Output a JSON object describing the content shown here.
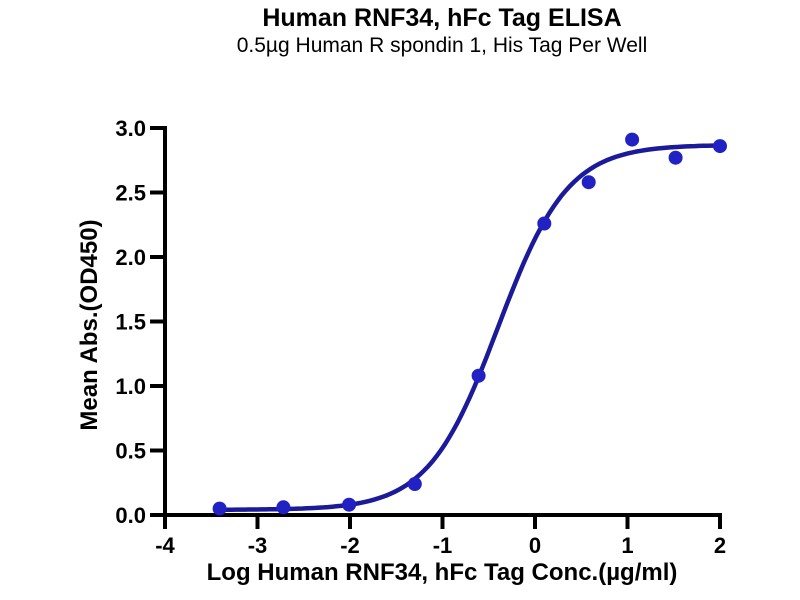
{
  "chart_data": {
    "type": "scatter",
    "title": "Human RNF34, hFc Tag ELISA",
    "subtitle": "0.5µg Human R spondin 1, His Tag Per Well",
    "xlabel": "Log Human RNF34, hFc Tag Conc.(µg/ml)",
    "ylabel": "Mean Abs.(OD450)",
    "xlim": [
      -4,
      2
    ],
    "ylim": [
      0,
      3
    ],
    "xticks": {
      "values": [
        -4,
        -3,
        -2,
        -1,
        0,
        1,
        2
      ],
      "labels": [
        "-4",
        "-3",
        "-2",
        "-1",
        "0",
        "1",
        "2"
      ]
    },
    "yticks": {
      "values": [
        0,
        0.5,
        1,
        1.5,
        2,
        2.5,
        3
      ],
      "labels": [
        "0.0",
        "0.5",
        "1.0",
        "1.5",
        "2.0",
        "2.5",
        "3.0"
      ]
    },
    "points": [
      {
        "x": -3.41,
        "y": 0.05
      },
      {
        "x": -2.72,
        "y": 0.06
      },
      {
        "x": -2.01,
        "y": 0.08
      },
      {
        "x": -1.3,
        "y": 0.24
      },
      {
        "x": -0.61,
        "y": 1.08
      },
      {
        "x": 0.1,
        "y": 2.26
      },
      {
        "x": 0.58,
        "y": 2.58
      },
      {
        "x": 1.05,
        "y": 2.91
      },
      {
        "x": 1.52,
        "y": 2.77
      },
      {
        "x": 2.0,
        "y": 2.86
      }
    ],
    "fit_curve": {
      "model": "4PL-sigmoid",
      "bottom": 0.04,
      "top": 2.87,
      "logEC50": -0.4,
      "hillslope": 1.15,
      "x_start": -3.41,
      "x_end": 2.0
    },
    "grid": false,
    "legend": null,
    "style": {
      "marker_color": "#2121c4",
      "line_color": "#1b1b99",
      "axis_color": "#000000",
      "text_color": "#000000",
      "background": "#ffffff"
    }
  }
}
